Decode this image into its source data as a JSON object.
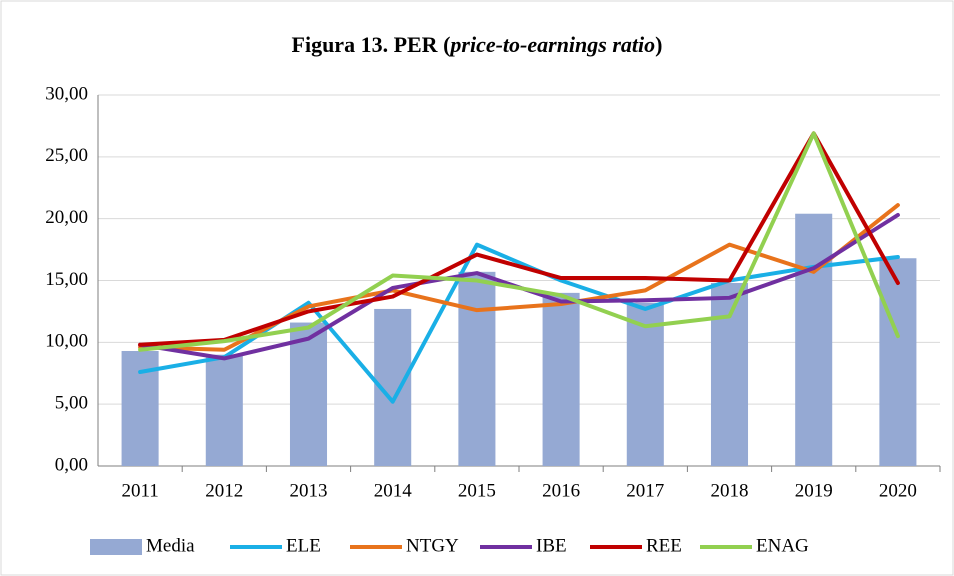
{
  "chart_data": {
    "type": "bar-line",
    "title": [
      "Figura 13. PER (",
      "price-to-earnings ratio",
      ")"
    ],
    "categories": [
      "2011",
      "2012",
      "2013",
      "2014",
      "2015",
      "2016",
      "2017",
      "2018",
      "2019",
      "2020"
    ],
    "series": [
      {
        "name": "Media",
        "type": "bar",
        "color": "#95a9d3",
        "values": [
          9.3,
          9.0,
          11.6,
          12.7,
          15.7,
          14.0,
          13.2,
          14.8,
          20.4,
          16.8
        ]
      },
      {
        "name": "ELE",
        "type": "line",
        "color": "#1aafe6",
        "values": [
          7.6,
          8.8,
          13.2,
          5.2,
          17.9,
          15.0,
          12.7,
          15.0,
          16.1,
          16.9
        ]
      },
      {
        "name": "NTGY",
        "type": "line",
        "color": "#e8731c",
        "values": [
          9.6,
          9.4,
          12.9,
          14.2,
          12.6,
          13.1,
          14.2,
          17.9,
          15.7,
          21.1
        ]
      },
      {
        "name": "IBE",
        "type": "line",
        "color": "#7030a0",
        "values": [
          9.8,
          8.7,
          10.3,
          14.4,
          15.6,
          13.3,
          13.4,
          13.6,
          16.0,
          20.3
        ]
      },
      {
        "name": "REE",
        "type": "line",
        "color": "#c00000",
        "values": [
          9.8,
          10.2,
          12.5,
          13.7,
          17.1,
          15.2,
          15.2,
          15.0,
          26.9,
          14.8
        ]
      },
      {
        "name": "ENAG",
        "type": "line",
        "color": "#92d050",
        "values": [
          9.4,
          10.1,
          11.2,
          15.4,
          15.0,
          13.8,
          11.3,
          12.1,
          26.9,
          10.5
        ]
      }
    ],
    "ylim": [
      0,
      30
    ],
    "yticks": [
      {
        "value": 0,
        "label": "0,00"
      },
      {
        "value": 5,
        "label": "5,00"
      },
      {
        "value": 10,
        "label": "10,00"
      },
      {
        "value": 15,
        "label": "15,00"
      },
      {
        "value": 20,
        "label": "20,00"
      },
      {
        "value": 25,
        "label": "25,00"
      },
      {
        "value": 30,
        "label": "30,00"
      }
    ],
    "grid": true,
    "legend": "bottom"
  }
}
